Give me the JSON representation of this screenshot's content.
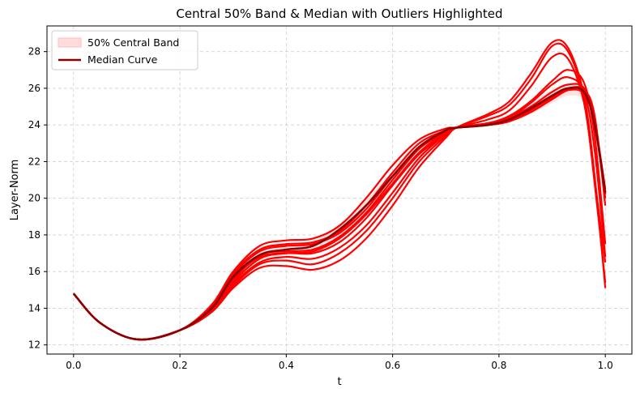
{
  "chart_data": {
    "type": "line",
    "title": "Central 50% Band & Median with Outliers Highlighted",
    "xlabel": "t",
    "ylabel": "Layer-Norm",
    "xlim": [
      -0.05,
      1.05
    ],
    "ylim": [
      11.5,
      29.4
    ],
    "xticks": [
      0.0,
      0.2,
      0.4,
      0.6,
      0.8,
      1.0
    ],
    "xtick_labels": [
      "0.0",
      "0.2",
      "0.4",
      "0.6",
      "0.8",
      "1.0"
    ],
    "yticks": [
      12,
      14,
      16,
      18,
      20,
      22,
      24,
      26,
      28
    ],
    "ytick_labels": [
      "12",
      "14",
      "16",
      "18",
      "20",
      "22",
      "24",
      "26",
      "28"
    ],
    "grid": true,
    "legend_position": "top-left",
    "legend": [
      {
        "label": "50% Central Band",
        "kind": "band",
        "color": "#ffcccc"
      },
      {
        "label": "Median Curve",
        "kind": "line",
        "color": "#8b0000"
      }
    ],
    "colors": {
      "outlier": "#ff0000",
      "median": "#8b0000",
      "band": "#ffcccc"
    },
    "x": [
      0.0,
      0.05,
      0.12,
      0.2,
      0.26,
      0.3,
      0.35,
      0.4,
      0.45,
      0.5,
      0.55,
      0.6,
      0.65,
      0.7,
      0.72,
      0.78,
      0.82,
      0.86,
      0.9,
      0.93,
      0.96,
      0.98,
      1.0
    ],
    "median": [
      14.8,
      13.2,
      12.3,
      12.8,
      14.0,
      15.7,
      16.9,
      17.2,
      17.4,
      18.3,
      19.6,
      21.2,
      22.8,
      23.7,
      23.85,
      24.0,
      24.3,
      24.9,
      25.6,
      26.0,
      25.8,
      24.0,
      20.3
    ],
    "band_lower": [
      14.8,
      13.2,
      12.3,
      12.8,
      13.9,
      15.4,
      16.6,
      16.9,
      17.0,
      17.8,
      19.1,
      20.8,
      22.5,
      23.6,
      23.85,
      24.0,
      24.2,
      24.6,
      25.2,
      25.6,
      25.3,
      23.4,
      19.6
    ],
    "band_upper": [
      14.8,
      13.2,
      12.3,
      12.8,
      14.1,
      15.9,
      17.1,
      17.4,
      17.6,
      18.6,
      19.9,
      21.5,
      23.0,
      23.8,
      23.85,
      24.1,
      24.5,
      25.2,
      25.9,
      26.2,
      26.1,
      24.6,
      20.6
    ],
    "series": [
      {
        "values": [
          14.8,
          13.2,
          12.3,
          12.8,
          14.2,
          16.0,
          17.4,
          17.7,
          17.8,
          18.5,
          20.0,
          21.8,
          23.2,
          23.8,
          23.85,
          24.0,
          24.2,
          24.8,
          25.5,
          25.9,
          25.7,
          24.1,
          20.5
        ]
      },
      {
        "values": [
          14.8,
          13.2,
          12.3,
          12.8,
          14.1,
          15.9,
          17.2,
          17.5,
          17.6,
          18.2,
          19.6,
          21.4,
          23.0,
          23.7,
          23.85,
          24.0,
          24.3,
          24.9,
          25.6,
          26.0,
          25.9,
          24.3,
          20.2
        ]
      },
      {
        "values": [
          14.8,
          13.2,
          12.3,
          12.8,
          14.0,
          15.6,
          16.8,
          17.0,
          17.1,
          17.8,
          19.1,
          20.8,
          22.5,
          23.6,
          23.85,
          24.1,
          24.4,
          25.0,
          25.8,
          26.2,
          26.0,
          24.2,
          20.0
        ]
      },
      {
        "values": [
          14.8,
          13.2,
          12.3,
          12.8,
          13.9,
          15.3,
          16.5,
          16.8,
          16.7,
          17.3,
          18.5,
          20.3,
          22.2,
          23.5,
          23.85,
          24.3,
          24.8,
          26.1,
          27.7,
          27.6,
          25.2,
          21.0,
          16.5
        ]
      },
      {
        "values": [
          14.8,
          13.2,
          12.3,
          12.8,
          13.8,
          15.2,
          16.4,
          16.6,
          16.4,
          17.0,
          18.2,
          20.0,
          22.0,
          23.4,
          23.85,
          24.5,
          25.1,
          26.5,
          28.3,
          28.0,
          25.4,
          20.8,
          15.4
        ]
      },
      {
        "values": [
          14.8,
          13.2,
          12.3,
          12.8,
          13.8,
          15.1,
          16.2,
          16.3,
          16.1,
          16.6,
          17.8,
          19.6,
          21.7,
          23.3,
          23.85,
          24.6,
          25.3,
          26.8,
          28.5,
          28.2,
          25.6,
          21.2,
          15.1
        ]
      },
      {
        "values": [
          14.8,
          13.2,
          12.3,
          12.8,
          13.9,
          15.4,
          16.7,
          17.0,
          17.0,
          17.6,
          18.9,
          20.7,
          22.4,
          23.5,
          23.85,
          24.1,
          24.5,
          25.3,
          26.4,
          27.0,
          26.3,
          23.4,
          17.5
        ]
      },
      {
        "values": [
          14.8,
          13.2,
          12.3,
          12.8,
          14.0,
          15.8,
          17.1,
          17.4,
          17.5,
          18.1,
          19.4,
          21.2,
          22.8,
          23.7,
          23.85,
          24.0,
          24.2,
          24.7,
          25.4,
          25.9,
          25.9,
          24.5,
          19.6
        ]
      },
      {
        "values": [
          14.8,
          13.2,
          12.3,
          12.8,
          13.9,
          15.5,
          16.9,
          17.1,
          17.2,
          17.9,
          19.2,
          21.0,
          22.7,
          23.6,
          23.85,
          24.1,
          24.4,
          25.2,
          26.2,
          26.6,
          25.8,
          22.6,
          16.8
        ]
      }
    ]
  }
}
